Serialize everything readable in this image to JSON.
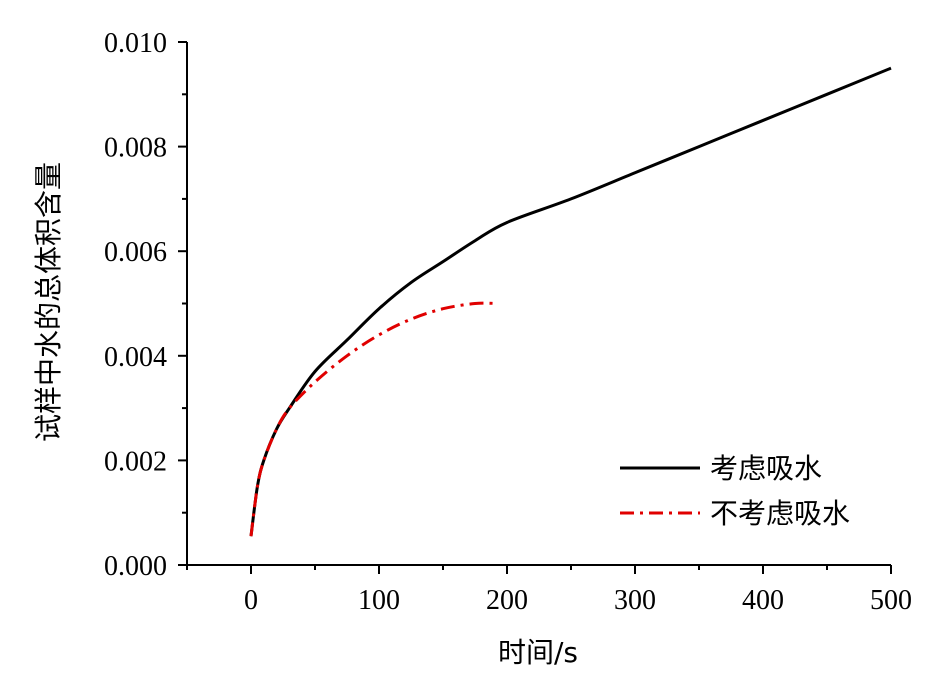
{
  "chart_data": {
    "type": "line",
    "xlabel": "时间/s",
    "ylabel": "试样中水的总体积含量",
    "xlim": [
      -50,
      500
    ],
    "ylim": [
      0,
      0.01
    ],
    "xticks": [
      0,
      100,
      200,
      300,
      400,
      500
    ],
    "xtick_labels": [
      "0",
      "100",
      "200",
      "300",
      "400",
      "500"
    ],
    "yticks": [
      0,
      0.002,
      0.004,
      0.006,
      0.008,
      0.01
    ],
    "ytick_labels": [
      "0.000",
      "0.002",
      "0.004",
      "0.006",
      "0.008",
      "0.010"
    ],
    "grid": false,
    "legend_position": "bottom-right",
    "series": [
      {
        "name": "考虑吸水",
        "color": "#000000",
        "style": "solid",
        "x": [
          0,
          5,
          10,
          20,
          30,
          50,
          75,
          100,
          125,
          150,
          175,
          200,
          250,
          300,
          350,
          400,
          450,
          500
        ],
        "y": [
          0.00055,
          0.0015,
          0.002,
          0.0026,
          0.003,
          0.0037,
          0.0043,
          0.0049,
          0.0054,
          0.0058,
          0.0062,
          0.00655,
          0.007,
          0.0075,
          0.008,
          0.0085,
          0.009,
          0.0095
        ]
      },
      {
        "name": "不考虑吸水",
        "color": "#e00000",
        "style": "dash-dot",
        "x": [
          0,
          5,
          10,
          20,
          30,
          50,
          75,
          100,
          125,
          150,
          175,
          193
        ],
        "y": [
          0.00055,
          0.0015,
          0.002,
          0.0026,
          0.003,
          0.0035,
          0.004,
          0.0044,
          0.0047,
          0.0049,
          0.005,
          0.005
        ]
      }
    ]
  }
}
